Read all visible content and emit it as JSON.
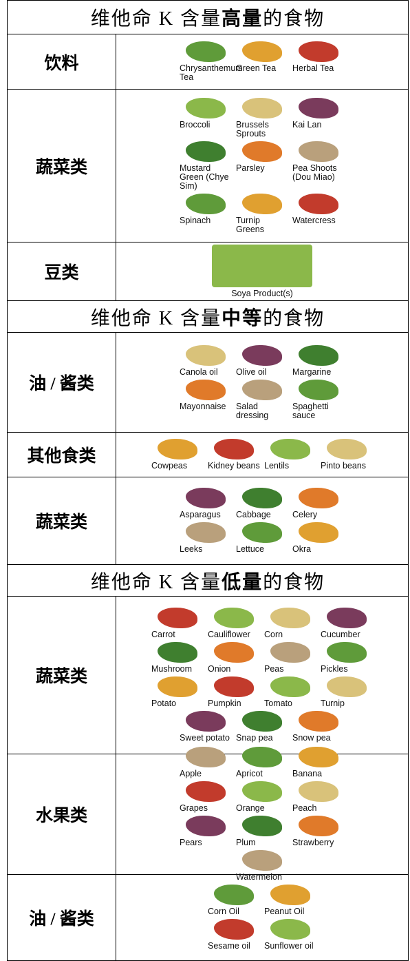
{
  "sections": [
    {
      "title": {
        "prefix": "维他命 K 含量",
        "emphasis": "高量",
        "suffix": "的食物"
      },
      "groups": [
        {
          "category": "饮料",
          "item_rows": [
            [
              "Chrysanthemum Tea",
              "Green Tea",
              "Herbal Tea"
            ]
          ]
        },
        {
          "category": "蔬菜类",
          "item_rows": [
            [
              "Broccoli",
              "Brussels Sprouts",
              "Kai Lan"
            ],
            [
              "Mustard Green (Chye Sim)",
              "Parsley",
              "Pea Shoots (Dou Miao)"
            ],
            [
              "Spinach",
              "Turnip Greens",
              "Watercress"
            ]
          ]
        },
        {
          "category": "豆类",
          "item_rows": [
            [
              "Soya Product(s)"
            ]
          ]
        }
      ]
    },
    {
      "title": {
        "prefix": "维他命 K 含量",
        "emphasis": "中等",
        "suffix": "的食物"
      },
      "groups": [
        {
          "category": "油 / 酱类",
          "item_rows": [
            [
              "Canola oil",
              "Olive oil",
              "Margarine"
            ],
            [
              "Mayonnaise",
              "Salad dressing",
              "Spaghetti sauce"
            ]
          ]
        },
        {
          "category": "其他食类",
          "item_rows": [
            [
              "Cowpeas",
              "Kidney beans",
              "Lentils",
              "Pinto beans"
            ]
          ]
        },
        {
          "category": "蔬菜类",
          "item_rows": [
            [
              "Asparagus",
              "Cabbage",
              "Celery"
            ],
            [
              "Leeks",
              "Lettuce",
              "Okra"
            ]
          ]
        }
      ]
    },
    {
      "title": {
        "prefix": "维他命 K 含量",
        "emphasis": "低量",
        "suffix": "的食物"
      },
      "groups": [
        {
          "category": "蔬菜类",
          "item_rows": [
            [
              "Carrot",
              "Cauliflower",
              "Corn",
              "Cucumber"
            ],
            [
              "Mushroom",
              "Onion",
              "Peas",
              "Pickles"
            ],
            [
              "Potato",
              "Pumpkin",
              "Tomato",
              "Turnip"
            ],
            [
              "Sweet potato",
              "Snap pea",
              "Snow pea"
            ]
          ]
        },
        {
          "category": "水果类",
          "item_rows": [
            [
              "Apple",
              "Apricot",
              "Banana"
            ],
            [
              "Grapes",
              "Orange",
              "Peach"
            ],
            [
              "Pears",
              "Plum",
              "Strawberry"
            ],
            [
              "Watermelon"
            ]
          ]
        },
        {
          "category": "油 / 酱类",
          "item_rows": [
            [
              "Corn Oil",
              "Peanut Oil"
            ],
            [
              "Sesame oil",
              "Sunflower oil"
            ]
          ]
        }
      ]
    }
  ]
}
